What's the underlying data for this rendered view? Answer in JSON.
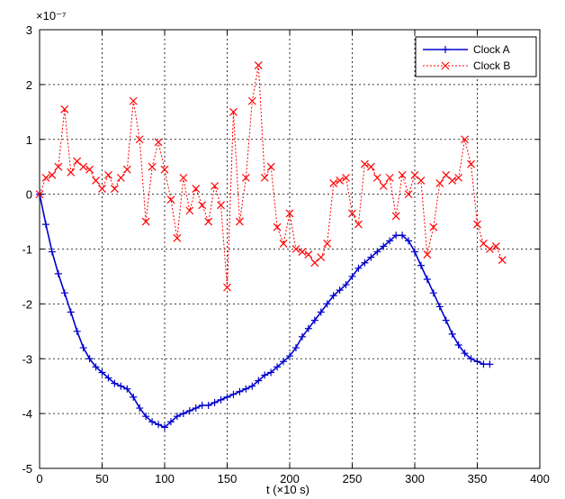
{
  "chart_data": {
    "type": "line",
    "xlabel": "t (×10 s)",
    "ylabel": "",
    "y_multiplier": "×10⁻⁷",
    "xlim": [
      0,
      400
    ],
    "ylim": [
      -5,
      3
    ],
    "x_ticks": [
      "0",
      "50",
      "100",
      "150",
      "200",
      "250",
      "300",
      "350",
      "400"
    ],
    "y_ticks": [
      "-5",
      "-4",
      "-3",
      "-2",
      "-1",
      "0",
      "1",
      "2",
      "3"
    ],
    "grid": true,
    "legend_position": "top-right",
    "series": [
      {
        "name": "Clock A",
        "color": "#0000cc",
        "marker": "plus",
        "line": "solid",
        "x": [
          0,
          5,
          10,
          15,
          20,
          25,
          30,
          35,
          40,
          45,
          50,
          55,
          60,
          65,
          70,
          75,
          80,
          85,
          90,
          95,
          100,
          105,
          110,
          115,
          120,
          125,
          130,
          135,
          140,
          145,
          150,
          155,
          160,
          165,
          170,
          175,
          180,
          185,
          190,
          195,
          200,
          205,
          210,
          215,
          220,
          225,
          230,
          235,
          240,
          245,
          250,
          255,
          260,
          265,
          270,
          275,
          280,
          285,
          290,
          295,
          300,
          305,
          310,
          315,
          320,
          325,
          330,
          335,
          340,
          345,
          350,
          355,
          360
        ],
        "y": [
          0,
          -0.55,
          -1.05,
          -1.45,
          -1.8,
          -2.15,
          -2.5,
          -2.8,
          -3.0,
          -3.15,
          -3.25,
          -3.35,
          -3.45,
          -3.5,
          -3.55,
          -3.7,
          -3.9,
          -4.05,
          -4.15,
          -4.2,
          -4.25,
          -4.15,
          -4.05,
          -4.0,
          -3.95,
          -3.9,
          -3.85,
          -3.85,
          -3.8,
          -3.75,
          -3.7,
          -3.65,
          -3.6,
          -3.55,
          -3.5,
          -3.4,
          -3.3,
          -3.25,
          -3.15,
          -3.05,
          -2.95,
          -2.8,
          -2.6,
          -2.45,
          -2.3,
          -2.15,
          -2.0,
          -1.85,
          -1.75,
          -1.65,
          -1.5,
          -1.35,
          -1.25,
          -1.15,
          -1.05,
          -0.95,
          -0.85,
          -0.75,
          -0.75,
          -0.85,
          -1.05,
          -1.3,
          -1.55,
          -1.8,
          -2.05,
          -2.3,
          -2.55,
          -2.75,
          -2.9,
          -3.0,
          -3.05,
          -3.1,
          -3.1
        ]
      },
      {
        "name": "Clock B",
        "color": "#ff0000",
        "marker": "cross",
        "line": "dotted",
        "x": [
          0,
          5,
          10,
          15,
          20,
          25,
          30,
          35,
          40,
          45,
          50,
          55,
          60,
          65,
          70,
          75,
          80,
          85,
          90,
          95,
          100,
          105,
          110,
          115,
          120,
          125,
          130,
          135,
          140,
          145,
          150,
          155,
          160,
          165,
          170,
          175,
          180,
          185,
          190,
          195,
          200,
          205,
          210,
          215,
          220,
          225,
          230,
          235,
          240,
          245,
          250,
          255,
          260,
          265,
          270,
          275,
          280,
          285,
          290,
          295,
          300,
          305,
          310,
          315,
          320,
          325,
          330,
          335,
          340,
          345,
          350,
          355,
          360,
          365,
          370
        ],
        "y": [
          0.0,
          0.3,
          0.35,
          0.5,
          1.55,
          0.4,
          0.6,
          0.5,
          0.45,
          0.25,
          0.1,
          0.35,
          0.1,
          0.3,
          0.45,
          1.7,
          1.0,
          -0.5,
          0.5,
          0.95,
          0.45,
          -0.1,
          -0.8,
          0.3,
          -0.3,
          0.1,
          -0.2,
          -0.5,
          0.15,
          -0.2,
          -1.7,
          1.5,
          -0.5,
          0.3,
          1.7,
          2.35,
          0.3,
          0.5,
          -0.6,
          -0.9,
          -0.35,
          -1.0,
          -1.05,
          -1.1,
          -1.25,
          -1.15,
          -0.9,
          0.2,
          0.25,
          0.3,
          -0.35,
          -0.55,
          0.55,
          0.5,
          0.3,
          0.15,
          0.3,
          -0.4,
          0.35,
          0.0,
          0.35,
          0.25,
          -1.1,
          -0.6,
          0.2,
          0.35,
          0.25,
          0.3,
          1.0,
          0.55,
          -0.55,
          -0.9,
          -1.0,
          -0.95,
          -1.2
        ]
      }
    ]
  }
}
